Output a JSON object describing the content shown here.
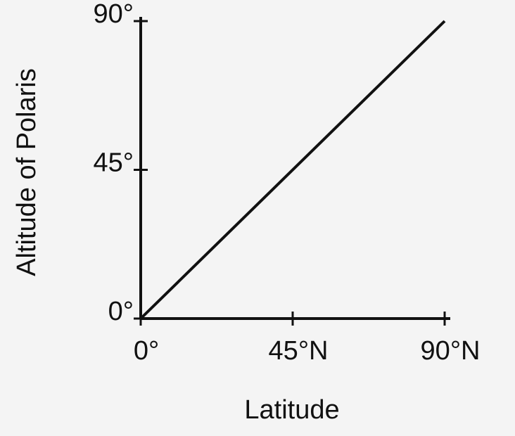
{
  "chart_data": {
    "type": "line",
    "x_label": "Latitude",
    "y_label": "Altitude of Polaris",
    "x": [
      0,
      90
    ],
    "values": [
      0,
      90
    ],
    "color": "#111111",
    "xlim": [
      0,
      90
    ],
    "ylim": [
      0,
      90
    ],
    "xticks": [
      {
        "value": 0,
        "label": "0°"
      },
      {
        "value": 45,
        "label": "45°N"
      },
      {
        "value": 90,
        "label": "90°N"
      }
    ],
    "yticks": [
      {
        "value": 0,
        "label": "0°"
      },
      {
        "value": 45,
        "label": "45°"
      },
      {
        "value": 90,
        "label": "90°"
      }
    ]
  }
}
